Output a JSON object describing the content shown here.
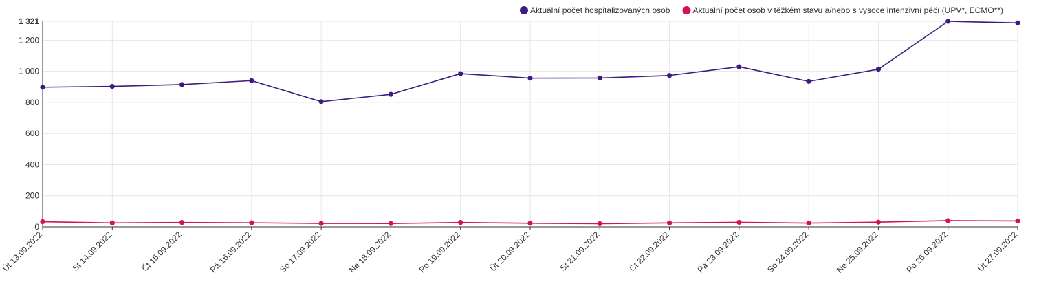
{
  "chart_data": {
    "type": "line",
    "categories": [
      "Út 13.09.2022",
      "St 14.09.2022",
      "Čt 15.09.2022",
      "Pá 16.09.2022",
      "So 17.09.2022",
      "Ne 18.09.2022",
      "Po 19.09.2022",
      "Út 20.09.2022",
      "St 21.09.2022",
      "Čt 22.09.2022",
      "Pá 23.09.2022",
      "So 24.09.2022",
      "Ne 25.09.2022",
      "Po 26.09.2022",
      "Út 27.09.2022"
    ],
    "series": [
      {
        "name": "Aktuální počet hospitalizovaných osob",
        "color": "#3f1a7f",
        "values": [
          898,
          903,
          915,
          940,
          805,
          852,
          985,
          956,
          957,
          973,
          1029,
          935,
          1013,
          1321,
          1311
        ]
      },
      {
        "name": "Aktuální počet osob v těžkém stavu a/nebo s vysoce intenzivní péčí (UPV*, ECMO**)",
        "color": "#d3154c",
        "values": [
          33,
          25,
          28,
          26,
          22,
          21,
          28,
          23,
          20,
          25,
          29,
          24,
          30,
          40,
          38
        ]
      }
    ],
    "y_ticks": [
      "0",
      "200",
      "400",
      "600",
      "800",
      "1 000",
      "1 200"
    ],
    "y_tick_values": [
      0,
      200,
      400,
      600,
      800,
      1000,
      1200
    ],
    "y_max_label": "1 321",
    "ylim": [
      0,
      1321
    ],
    "grid": true,
    "legend_position": "top-right",
    "title": "",
    "xlabel": "",
    "ylabel": ""
  }
}
